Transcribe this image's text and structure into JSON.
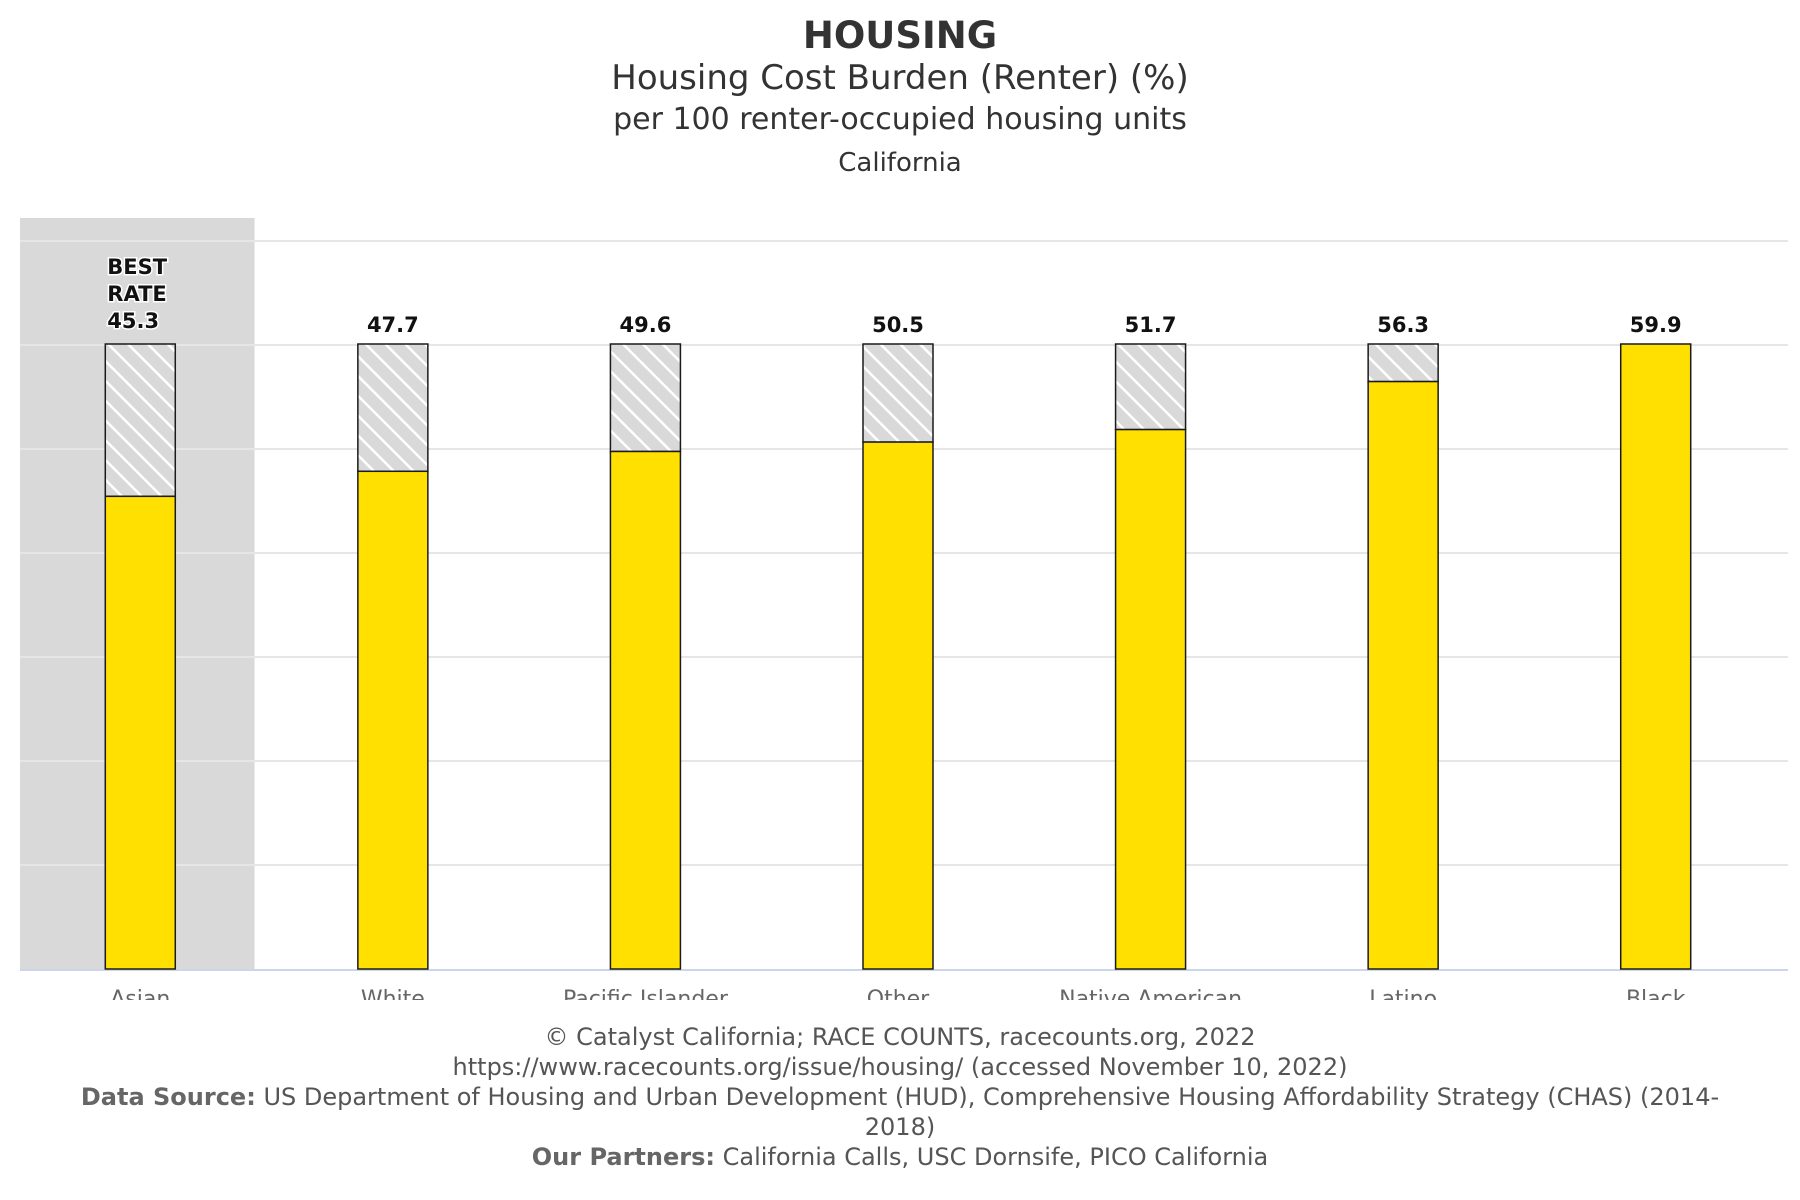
{
  "chart_data": {
    "type": "bar",
    "title": "HOUSING",
    "subtitle": "Housing Cost Burden (Renter) (%)",
    "unit_label": "per 100 renter-occupied housing units",
    "geography": "California",
    "categories": [
      "Asian",
      "White",
      "Pacific Islander",
      "Other",
      "Native American",
      "Latino",
      "Black"
    ],
    "values": [
      45.3,
      47.7,
      49.6,
      50.5,
      51.7,
      56.3,
      59.9
    ],
    "value_labels": [
      "45.3",
      "47.7",
      "49.6",
      "50.5",
      "51.7",
      "56.3",
      "59.9"
    ],
    "best_rate_label": [
      "BEST",
      "RATE"
    ],
    "best_index": 0,
    "ylim": [
      0,
      59.9
    ],
    "grid": true,
    "colors": {
      "bar": "#ffe000",
      "bar_outline": "#1a1a1a",
      "hatch_bg": "#d9d9d9",
      "hatch_line": "#ffffff",
      "highlight_bg": "#d9d9d9",
      "grid": "#e6e6e6",
      "axis": "#ccd6eb"
    }
  },
  "footer": {
    "copyright": "© Catalyst California; RACE COUNTS, racecounts.org, 2022",
    "url": "https://www.racecounts.org/issue/housing/ (accessed November 10, 2022)",
    "source_label": "Data Source:",
    "source_text": "US Department of Housing and Urban Development (HUD), Comprehensive Housing Affordability Strategy (CHAS) (2014-",
    "source_text_cont": "2018)",
    "partners_label": "Our Partners:",
    "partners_text": "California Calls, USC Dornsife, PICO California"
  }
}
